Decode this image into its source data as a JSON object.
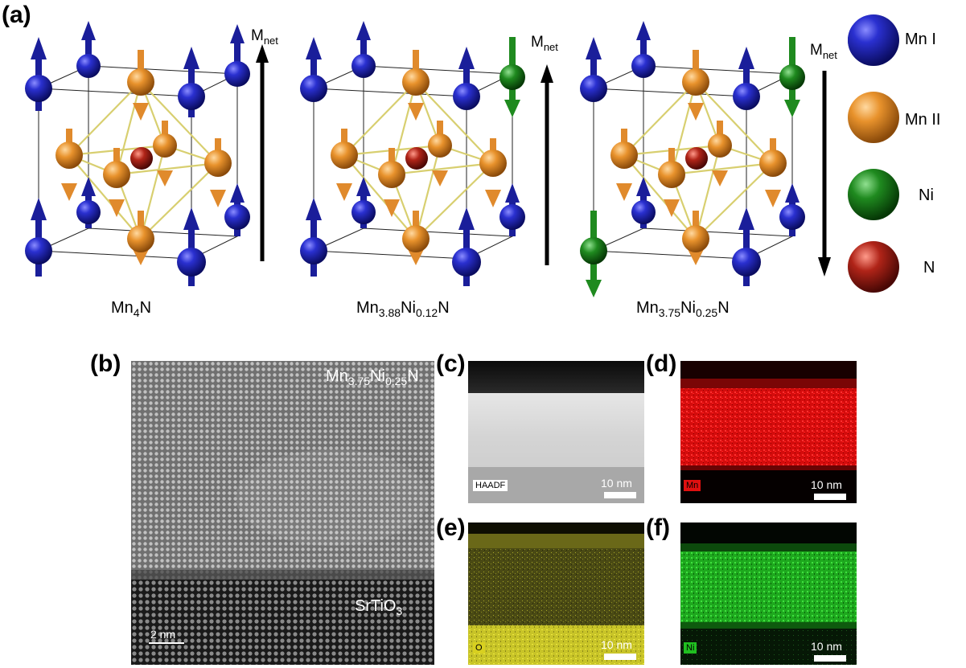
{
  "panel_a": {
    "label": "(a)",
    "cells": [
      {
        "formula_base": "Mn",
        "formula_sub1": "4",
        "formula_mid": "",
        "formula_sub2": "",
        "formula_end": "N",
        "mnet": "M",
        "mnet_sub": "net",
        "mnet_direction": "up"
      },
      {
        "formula_base": "Mn",
        "formula_sub1": "3.88",
        "formula_mid": "Ni",
        "formula_sub2": "0.12",
        "formula_end": "N",
        "mnet": "M",
        "mnet_sub": "net",
        "mnet_direction": "up"
      },
      {
        "formula_base": "Mn",
        "formula_sub1": "3.75",
        "formula_mid": "Ni",
        "formula_sub2": "0.25",
        "formula_end": "N",
        "mnet": "M",
        "mnet_sub": "net",
        "mnet_direction": "down"
      }
    ],
    "legend": [
      {
        "label": "Mn I",
        "color": "#1c22b8"
      },
      {
        "label": "Mn II",
        "color": "#e08a2c"
      },
      {
        "label": "Ni",
        "color": "#1f8a1f"
      },
      {
        "label": "N",
        "color": "#a51c14"
      }
    ]
  },
  "panel_b": {
    "label": "(b)",
    "film": "Mn",
    "film_sub1": "3.75",
    "film_mid": "Ni",
    "film_sub2": "0.25",
    "film_end": "N",
    "substrate": "SrTiO",
    "substrate_sub": "3",
    "scale": "2 nm"
  },
  "panel_c": {
    "label": "(c)",
    "tag": "HAADF",
    "scale": "10 nm"
  },
  "panel_d": {
    "label": "(d)",
    "tag": "Mn",
    "tag_color": "#e01010",
    "scale": "10 nm"
  },
  "panel_e": {
    "label": "(e)",
    "tag": "O",
    "tag_color": "#d8d020",
    "scale": "10 nm"
  },
  "panel_f": {
    "label": "(f)",
    "tag": "Ni",
    "tag_color": "#20c020",
    "scale": "10 nm"
  }
}
